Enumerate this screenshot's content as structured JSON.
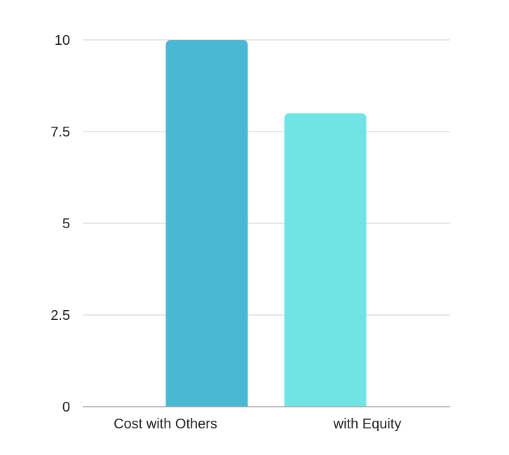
{
  "chart_data": {
    "type": "bar",
    "categories": [
      "Cost with Others",
      "with Equity"
    ],
    "values": [
      10,
      8
    ],
    "ylim": [
      0,
      10
    ],
    "yticks": [
      0,
      2.5,
      5,
      7.5,
      10
    ],
    "ytick_labels": [
      "0",
      "2.5",
      "5",
      "7.5",
      "10"
    ],
    "grid": true,
    "legend": "none",
    "colors": [
      "#4ab8d3",
      "#70e4e4"
    ],
    "title": "",
    "xlabel": "",
    "ylabel": ""
  }
}
